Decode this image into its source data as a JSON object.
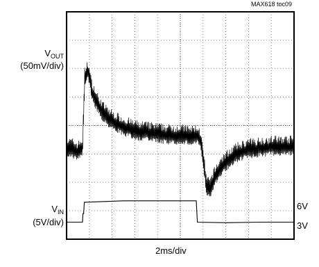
{
  "chart_data": {
    "type": "line",
    "reference": "MAX618 toc09",
    "x_scale": "2ms/div",
    "grid": true,
    "grid_divisions": {
      "x": 10,
      "y": 8
    },
    "series": [
      {
        "name_main": "V",
        "name_sub": "OUT",
        "scale": "(50mV/div)",
        "trace": [
          [
            0.0,
            3.15
          ],
          [
            0.3,
            3.1
          ],
          [
            0.5,
            3.0
          ],
          [
            0.6,
            3.1
          ],
          [
            0.7,
            3.15
          ],
          [
            0.8,
            5.6
          ],
          [
            0.95,
            5.9
          ],
          [
            1.1,
            5.2
          ],
          [
            1.3,
            4.8
          ],
          [
            1.6,
            4.4
          ],
          [
            2.0,
            4.1
          ],
          [
            2.5,
            3.9
          ],
          [
            3.0,
            3.75
          ],
          [
            3.5,
            3.7
          ],
          [
            4.0,
            3.65
          ],
          [
            4.5,
            3.6
          ],
          [
            5.0,
            3.6
          ],
          [
            5.5,
            3.55
          ],
          [
            5.75,
            3.6
          ],
          [
            5.9,
            3.4
          ],
          [
            6.0,
            2.8
          ],
          [
            6.15,
            1.8
          ],
          [
            6.3,
            1.7
          ],
          [
            6.5,
            2.1
          ],
          [
            6.8,
            2.5
          ],
          [
            7.2,
            2.8
          ],
          [
            7.6,
            3.0
          ],
          [
            8.0,
            3.1
          ],
          [
            8.5,
            3.15
          ],
          [
            9.0,
            3.2
          ],
          [
            9.5,
            3.2
          ],
          [
            10.0,
            3.2
          ]
        ],
        "noise_div": 0.35
      },
      {
        "name_main": "V",
        "name_sub": "IN",
        "scale": "(5V/div)",
        "levels": [
          "6V",
          "3V"
        ],
        "trace": [
          [
            0.0,
            0.6
          ],
          [
            0.7,
            0.6
          ],
          [
            0.72,
            0.9
          ],
          [
            0.75,
            0.9
          ],
          [
            0.78,
            1.3
          ],
          [
            2.5,
            1.35
          ],
          [
            4.0,
            1.35
          ],
          [
            5.7,
            1.35
          ],
          [
            5.75,
            0.6
          ],
          [
            7.0,
            0.58
          ],
          [
            8.5,
            0.6
          ],
          [
            10.0,
            0.6
          ]
        ]
      }
    ]
  }
}
